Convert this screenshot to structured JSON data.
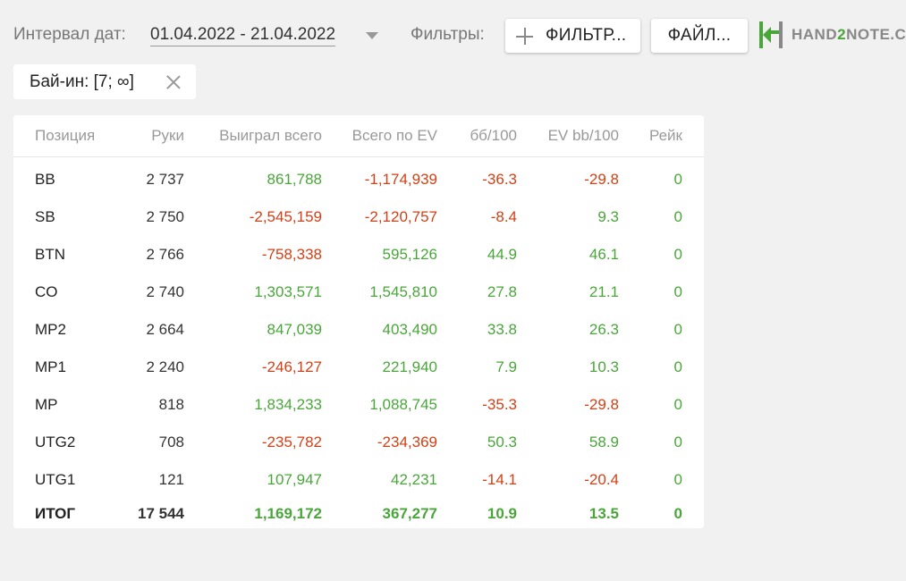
{
  "header": {
    "date_label": "Интервал дат:",
    "date_value": "01.04.2022 - 21.04.2022",
    "filters_label": "Фильтры:",
    "filter_button": "ФИЛЬТР...",
    "file_button": "ФАЙЛ...",
    "logo": {
      "text_a": "HAND",
      "text_b": "2",
      "text_c": "NOTE.C"
    }
  },
  "chip": {
    "label": "Бай-ин: [7; ∞]"
  },
  "colors": {
    "positive": "#4aa63a",
    "negative": "#d34017"
  },
  "table": {
    "columns": [
      "Позиция",
      "Руки",
      "Выиграл всего",
      "Всего по EV",
      "бб/100",
      "EV bb/100",
      "Рейк"
    ],
    "rows": [
      {
        "pos": "BB",
        "hands": "2 737",
        "won": "861,788",
        "ev": "-1,174,939",
        "bb": "-36.3",
        "evbb": "-29.8",
        "rake": "0"
      },
      {
        "pos": "SB",
        "hands": "2 750",
        "won": "-2,545,159",
        "ev": "-2,120,757",
        "bb": "-8.4",
        "evbb": "9.3",
        "rake": "0"
      },
      {
        "pos": "BTN",
        "hands": "2 766",
        "won": "-758,338",
        "ev": "595,126",
        "bb": "44.9",
        "evbb": "46.1",
        "rake": "0"
      },
      {
        "pos": "CO",
        "hands": "2 740",
        "won": "1,303,571",
        "ev": "1,545,810",
        "bb": "27.8",
        "evbb": "21.1",
        "rake": "0"
      },
      {
        "pos": "MP2",
        "hands": "2 664",
        "won": "847,039",
        "ev": "403,490",
        "bb": "33.8",
        "evbb": "26.3",
        "rake": "0"
      },
      {
        "pos": "MP1",
        "hands": "2 240",
        "won": "-246,127",
        "ev": "221,940",
        "bb": "7.9",
        "evbb": "10.3",
        "rake": "0"
      },
      {
        "pos": "MP",
        "hands": "818",
        "won": "1,834,233",
        "ev": "1,088,745",
        "bb": "-35.3",
        "evbb": "-29.8",
        "rake": "0"
      },
      {
        "pos": "UTG2",
        "hands": "708",
        "won": "-235,782",
        "ev": "-234,369",
        "bb": "50.3",
        "evbb": "58.9",
        "rake": "0"
      },
      {
        "pos": "UTG1",
        "hands": "121",
        "won": "107,947",
        "ev": "42,231",
        "bb": "-14.1",
        "evbb": "-20.4",
        "rake": "0"
      }
    ],
    "total": {
      "pos": "ИТОГ",
      "hands": "17 544",
      "won": "1,169,172",
      "ev": "367,277",
      "bb": "10.9",
      "evbb": "13.5",
      "rake": "0"
    }
  }
}
